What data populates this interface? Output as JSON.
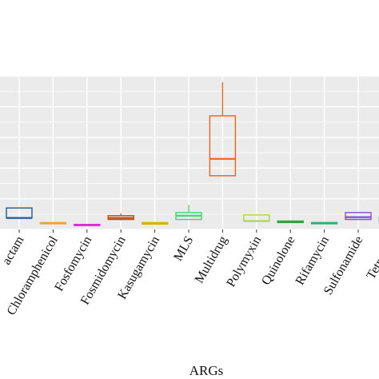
{
  "chart_data": {
    "type": "box",
    "xlabel": "ARGs",
    "ylabel": "",
    "ylim": [
      0,
      100
    ],
    "grid": true,
    "categories": [
      "Beta-lactam",
      "Chloramphenicol",
      "Fosfomycin",
      "Fosmidomycin",
      "Kasugamycin",
      "MLS",
      "Multidrug",
      "Polymyxin",
      "Quinolone",
      "Rifamycin",
      "Sulfonamide",
      "Tetracycline"
    ],
    "visible_categories": [
      "actam",
      "Chloramphenicol",
      "Fosfomycin",
      "Fosmidomycin",
      "Kasugamycin",
      "MLS",
      "Multidrug",
      "Polymyxin",
      "Quinolone",
      "Rifamycin",
      "Sulfonamide",
      "Tetracycl"
    ],
    "boxes": [
      {
        "category": "Beta-lactam",
        "min": 7.5,
        "q1": 7.5,
        "median": 7.5,
        "q3": 14,
        "max": 14,
        "color": "#1f5b8c"
      },
      {
        "category": "Chloramphenicol",
        "min": 4.0,
        "q1": 4.0,
        "median": 4.0,
        "q3": 4.5,
        "max": 4.5,
        "color": "#e8a33a"
      },
      {
        "category": "Fosfomycin",
        "min": 3.0,
        "q1": 3.0,
        "median": 3.0,
        "q3": 3.3,
        "max": 3.3,
        "color": "#d62dd6"
      },
      {
        "category": "Fosmidomycin",
        "min": 6.0,
        "q1": 6.5,
        "median": 7.5,
        "q3": 9,
        "max": 10.5,
        "color": "#c24d12"
      },
      {
        "category": "Kasugamycin",
        "min": 3.5,
        "q1": 3.5,
        "median": 4.0,
        "q3": 4.5,
        "max": 4.5,
        "color": "#d4b400"
      },
      {
        "category": "MLS",
        "min": 6.5,
        "q1": 6.5,
        "median": 9.0,
        "q3": 11,
        "max": 16,
        "color": "#3ed66e"
      },
      {
        "category": "Multidrug",
        "min": 35,
        "q1": 35,
        "median": 46,
        "q3": 74,
        "max": 96,
        "color": "#e0661e"
      },
      {
        "category": "Polymyxin",
        "min": 5.5,
        "q1": 5.5,
        "median": 5.5,
        "q3": 9.5,
        "max": 9.5,
        "color": "#a7d64a"
      },
      {
        "category": "Quinolone",
        "min": 4.5,
        "q1": 4.5,
        "median": 5.0,
        "q3": 5.5,
        "max": 5.5,
        "color": "#2fa43a"
      },
      {
        "category": "Rifamycin",
        "min": 4.0,
        "q1": 4.0,
        "median": 4.2,
        "q3": 4.5,
        "max": 4.5,
        "color": "#28b070"
      },
      {
        "category": "Sulfonamide",
        "min": 6.5,
        "q1": 6.5,
        "median": 8.0,
        "q3": 11,
        "max": 11,
        "color": "#8a4ad6"
      },
      {
        "category": "Tetracycline",
        "min": 5,
        "q1": 5,
        "median": 6,
        "q3": 8,
        "max": 8,
        "color": "#5a7ad6"
      }
    ],
    "colors": {
      "panel_background": "#ebebeb",
      "grid_major": "#ffffff",
      "axis_text": "#111111"
    }
  }
}
